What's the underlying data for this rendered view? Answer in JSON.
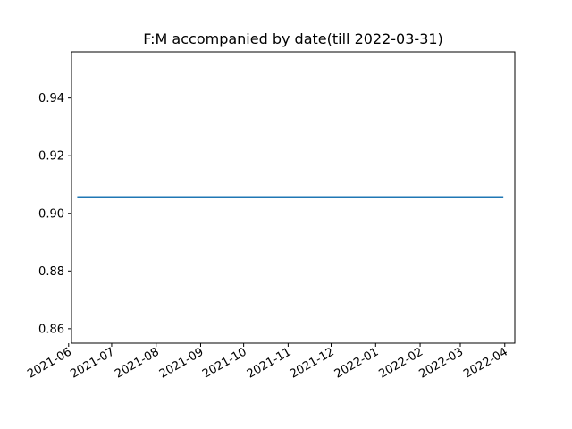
{
  "chart_data": {
    "type": "line",
    "title": "F:M accompanied by date(till 2022-03-31)",
    "xlabel": "",
    "ylabel": "",
    "x_axis_type": "date",
    "xlim": [
      "2021-06-03",
      "2022-04-08"
    ],
    "ylim": [
      0.855,
      0.956
    ],
    "x_ticks": [
      "2021-06-01",
      "2021-07-01",
      "2021-08-01",
      "2021-09-01",
      "2021-10-01",
      "2021-11-01",
      "2021-12-01",
      "2022-01-01",
      "2022-02-01",
      "2022-03-01",
      "2022-04-01"
    ],
    "x_tick_labels": [
      "2021-06",
      "2021-07",
      "2021-08",
      "2021-09",
      "2021-10",
      "2021-11",
      "2021-12",
      "2022-01",
      "2022-02",
      "2022-03",
      "2022-04"
    ],
    "y_ticks": [
      0.86,
      0.88,
      0.9,
      0.92,
      0.94
    ],
    "y_tick_labels": [
      "0.86",
      "0.88",
      "0.90",
      "0.92",
      "0.94"
    ],
    "grid": false,
    "series": [
      {
        "color": "#1f77b4",
        "x": [
          "2021-06-07",
          "2022-03-31"
        ],
        "y": [
          0.9057,
          0.9057
        ]
      }
    ]
  }
}
